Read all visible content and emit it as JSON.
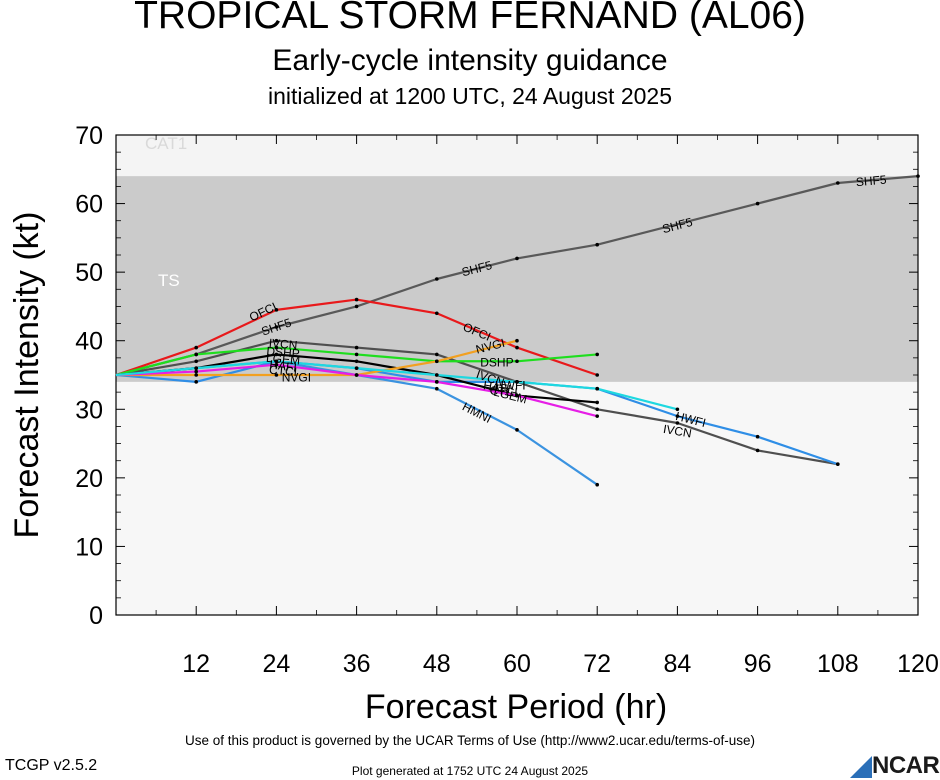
{
  "header": {
    "title": "TROPICAL STORM FERNAND (AL06)",
    "subtitle": "Early-cycle intensity guidance",
    "init": "initialized at 1200 UTC, 24 August 2025"
  },
  "footer": {
    "terms": "Use of this product is governed by the UCAR Terms of Use (http://www2.ucar.edu/terms-of-use)",
    "version": "TCGP v2.5.2",
    "generated": "Plot generated at 1752 UTC   24 August 2025",
    "logo": "NCAR"
  },
  "colors": {
    "cat1_band": "#f4f4f4",
    "ts_band": "#cbcbcb",
    "below_band": "#f7f7f7",
    "band_label": "#ffffff",
    "cat1_label": "#d9d9d9"
  },
  "chart_data": {
    "type": "line",
    "xlabel": "Forecast Period (hr)",
    "ylabel": "Forecast Intensity (kt)",
    "xlim": [
      0,
      120
    ],
    "ylim": [
      0,
      70
    ],
    "xticks": [
      12,
      24,
      36,
      48,
      60,
      72,
      84,
      96,
      108,
      120
    ],
    "yticks": [
      0,
      10,
      20,
      30,
      40,
      50,
      60,
      70
    ],
    "bands": [
      {
        "label": "CAT1",
        "from": 64,
        "to": 70
      },
      {
        "label": "TS",
        "from": 34,
        "to": 64
      }
    ],
    "series": [
      {
        "name": "SHF5",
        "color": "#595959",
        "x": [
          0,
          12,
          24,
          36,
          48,
          60,
          72,
          96,
          108,
          120
        ],
        "y": [
          35,
          38,
          42,
          45,
          49,
          52,
          54,
          60,
          63,
          64
        ],
        "labels": [
          {
            "x": 24,
            "y": 42
          },
          {
            "x": 54,
            "y": 50.5
          },
          {
            "x": 84,
            "y": 56.8
          },
          {
            "x": 113,
            "y": 63.3
          }
        ]
      },
      {
        "name": "OFCI",
        "color": "#e8191b",
        "x": [
          0,
          12,
          24,
          36,
          48,
          60,
          72
        ],
        "y": [
          35,
          39,
          44.5,
          46,
          44,
          39,
          35
        ],
        "labels": [
          {
            "x": 22,
            "y": 44.2
          },
          {
            "x": 54,
            "y": 41.3
          }
        ]
      },
      {
        "name": "IVCN",
        "color": "#4f4f4f",
        "x": [
          0,
          12,
          24,
          36,
          48,
          60,
          72,
          84,
          96,
          108
        ],
        "y": [
          35,
          37,
          40,
          39,
          38,
          34,
          30,
          28,
          24,
          22
        ],
        "labels": [
          {
            "x": 25,
            "y": 39.5
          },
          {
            "x": 56,
            "y": 34.5
          },
          {
            "x": 84,
            "y": 26.8
          }
        ]
      },
      {
        "name": "HWFI",
        "color": "#2f8ee6",
        "x": [
          0,
          12,
          24,
          36,
          48,
          60,
          72,
          84,
          96,
          108
        ],
        "y": [
          35,
          34,
          37,
          36,
          34,
          34,
          33,
          29,
          26,
          22
        ],
        "labels": [
          {
            "x": 59,
            "y": 33.5
          },
          {
            "x": 86,
            "y": 28.5
          }
        ]
      },
      {
        "name": "HMNI",
        "color": "#3b93e0",
        "x": [
          0,
          12,
          24,
          36,
          48,
          60,
          72
        ],
        "y": [
          35,
          36,
          37,
          35,
          33,
          27,
          19
        ],
        "labels": [
          {
            "x": 54,
            "y": 29.5
          }
        ]
      },
      {
        "name": "DSHP",
        "color": "#1ede1e",
        "x": [
          0,
          12,
          24,
          36,
          48,
          60,
          72
        ],
        "y": [
          35,
          38,
          39,
          38,
          37,
          37,
          38
        ],
        "labels": [
          {
            "x": 25,
            "y": 38.3
          },
          {
            "x": 57,
            "y": 36.8
          }
        ]
      },
      {
        "name": "LGEM",
        "color": "#000000",
        "x": [
          0,
          12,
          24,
          36,
          48,
          60,
          72
        ],
        "y": [
          35,
          36,
          38,
          37,
          35,
          32,
          31
        ],
        "labels": [
          {
            "x": 25,
            "y": 37.3
          },
          {
            "x": 59,
            "y": 32
          }
        ]
      },
      {
        "name": "NVGI",
        "color": "#f2a020",
        "x": [
          0,
          12,
          24,
          36,
          48,
          60
        ],
        "y": [
          35,
          35,
          35,
          35,
          37,
          40
        ],
        "labels": [
          {
            "x": 27,
            "y": 34.6
          },
          {
            "x": 56,
            "y": 39.2
          }
        ]
      },
      {
        "name": "HAFI",
        "color": "#e61ee6",
        "x": [
          0,
          12,
          24,
          36,
          48,
          60,
          72
        ],
        "y": [
          35,
          35.5,
          36.5,
          35,
          34,
          32,
          29
        ],
        "labels": [
          {
            "x": 25,
            "y": 36.3
          },
          {
            "x": 57,
            "y": 33.2
          }
        ]
      },
      {
        "name": "CTCI",
        "color": "#1ed8e0",
        "x": [
          0,
          12,
          24,
          36,
          48,
          60,
          72,
          84
        ],
        "y": [
          35,
          36,
          37,
          36,
          35,
          34,
          33,
          30
        ],
        "labels": [
          {
            "x": 25,
            "y": 35.6
          },
          {
            "x": 58,
            "y": 32.6
          }
        ]
      }
    ]
  }
}
